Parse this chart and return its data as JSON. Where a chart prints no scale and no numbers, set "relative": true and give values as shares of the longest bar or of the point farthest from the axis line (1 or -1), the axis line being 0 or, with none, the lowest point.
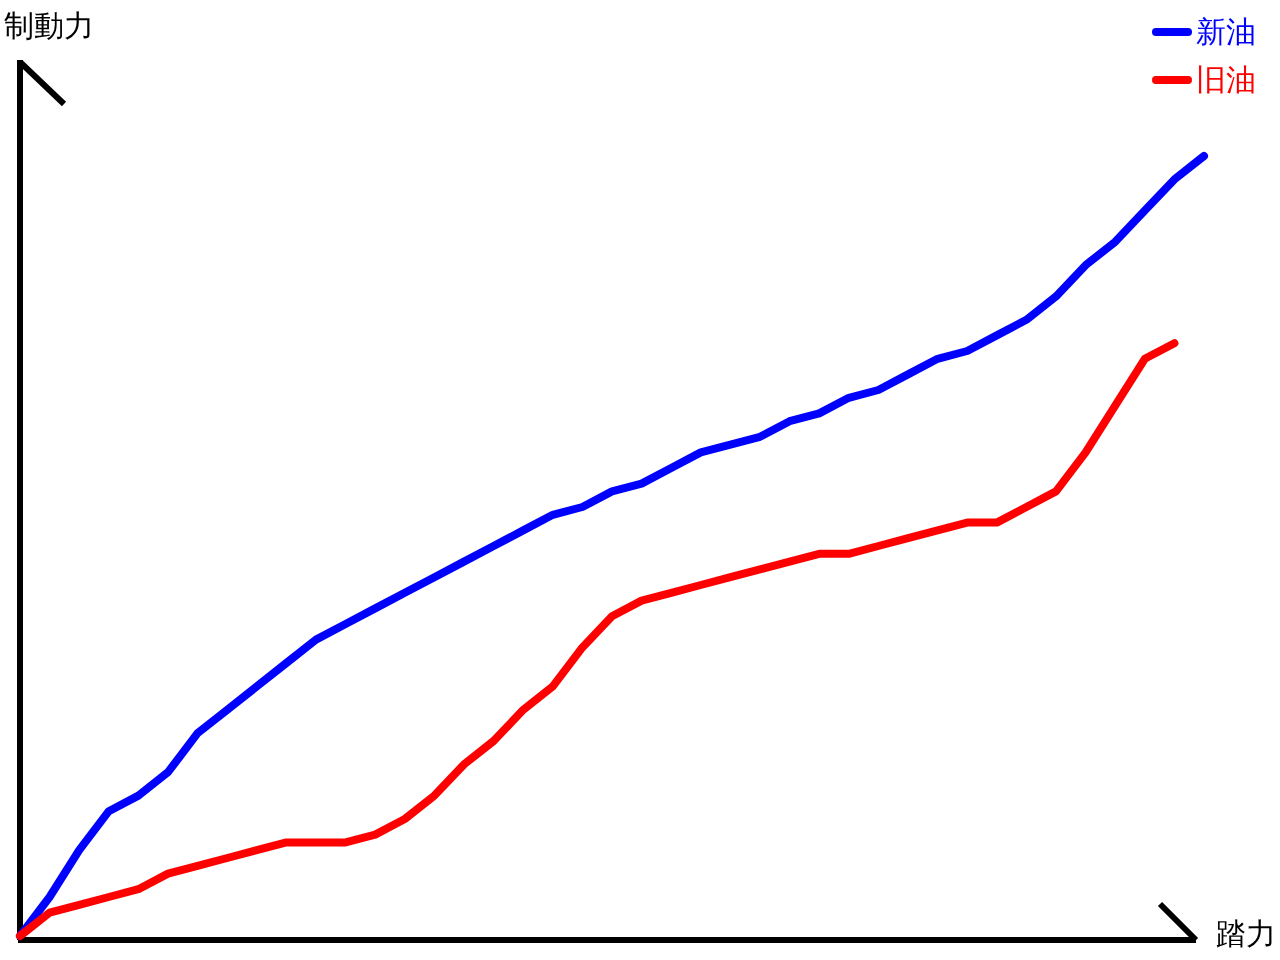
{
  "chart_data": {
    "type": "line",
    "relative": true,
    "xlabel": "踏力",
    "ylabel": "制動力",
    "legend": "top right",
    "line_style": "solid",
    "categories": [
      null,
      null,
      null,
      null,
      null,
      null,
      null,
      null,
      null,
      null,
      null,
      null,
      null,
      null,
      null,
      null,
      null,
      null,
      null,
      null,
      null,
      null,
      null,
      null,
      null,
      null,
      null,
      null,
      null,
      null,
      null,
      null,
      null,
      null,
      null,
      null,
      null,
      null,
      null,
      null,
      null
    ],
    "series": [
      {
        "name": "新油",
        "color": "#0000ff",
        "values": [
          0,
          0.05,
          0.11,
          0.16,
          0.18,
          0.21,
          0.26,
          0.29,
          0.32,
          0.35,
          0.38,
          0.4,
          0.42,
          0.44,
          0.46,
          0.48,
          0.5,
          0.52,
          0.54,
          0.55,
          0.57,
          0.58,
          0.6,
          0.62,
          0.63,
          0.64,
          0.66,
          0.67,
          0.69,
          0.7,
          0.72,
          0.74,
          0.75,
          0.77,
          0.79,
          0.82,
          0.86,
          0.89,
          0.93,
          0.97,
          1
        ]
      },
      {
        "name": "旧油",
        "color": "#ff0000",
        "values": [
          0,
          0.03,
          0.04,
          0.05,
          0.06,
          0.08,
          0.09,
          0.1,
          0.11,
          0.12,
          0.12,
          0.12,
          0.13,
          0.15,
          0.18,
          0.22,
          0.25,
          0.29,
          0.32,
          0.37,
          0.41,
          0.43,
          0.44,
          0.45,
          0.46,
          0.47,
          0.48,
          0.49,
          0.49,
          0.5,
          0.51,
          0.52,
          0.53,
          0.53,
          0.55,
          0.57,
          0.62,
          0.68,
          0.74,
          0.76,
          null
        ]
      }
    ]
  }
}
